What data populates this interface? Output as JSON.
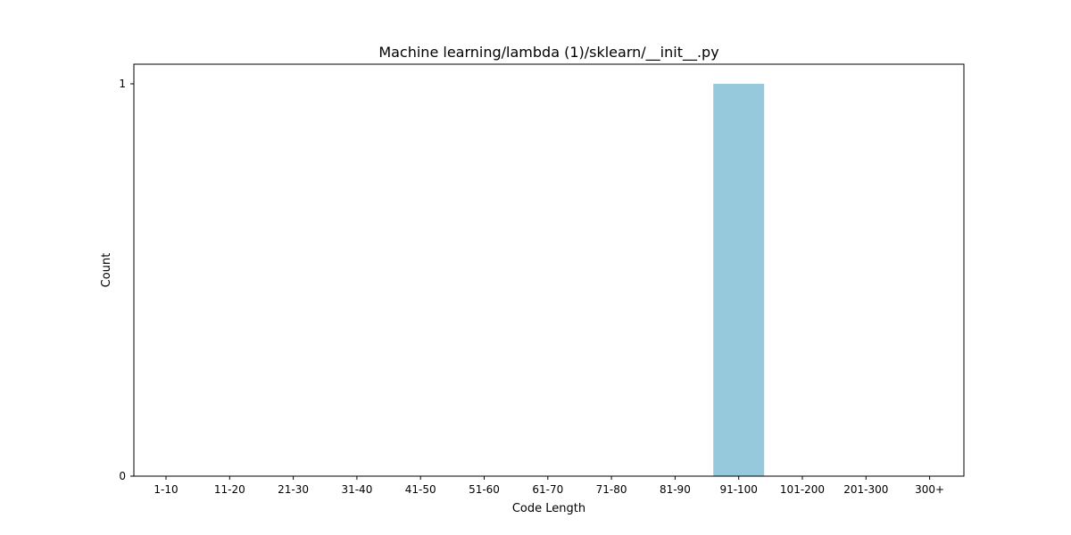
{
  "chart_data": {
    "type": "bar",
    "title": "Machine learning/lambda (1)/sklearn/__init__.py",
    "xlabel": "Code Length",
    "ylabel": "Count",
    "categories": [
      "1-10",
      "11-20",
      "21-30",
      "31-40",
      "41-50",
      "51-60",
      "61-70",
      "71-80",
      "81-90",
      "91-100",
      "101-200",
      "201-300",
      "300+"
    ],
    "values": [
      0,
      0,
      0,
      0,
      0,
      0,
      0,
      0,
      0,
      1,
      0,
      0,
      0
    ],
    "ylim": [
      0,
      1.05
    ],
    "yticks": [
      0,
      1
    ],
    "bar_color": "#96c9dc",
    "grid": false,
    "legend": "none"
  }
}
